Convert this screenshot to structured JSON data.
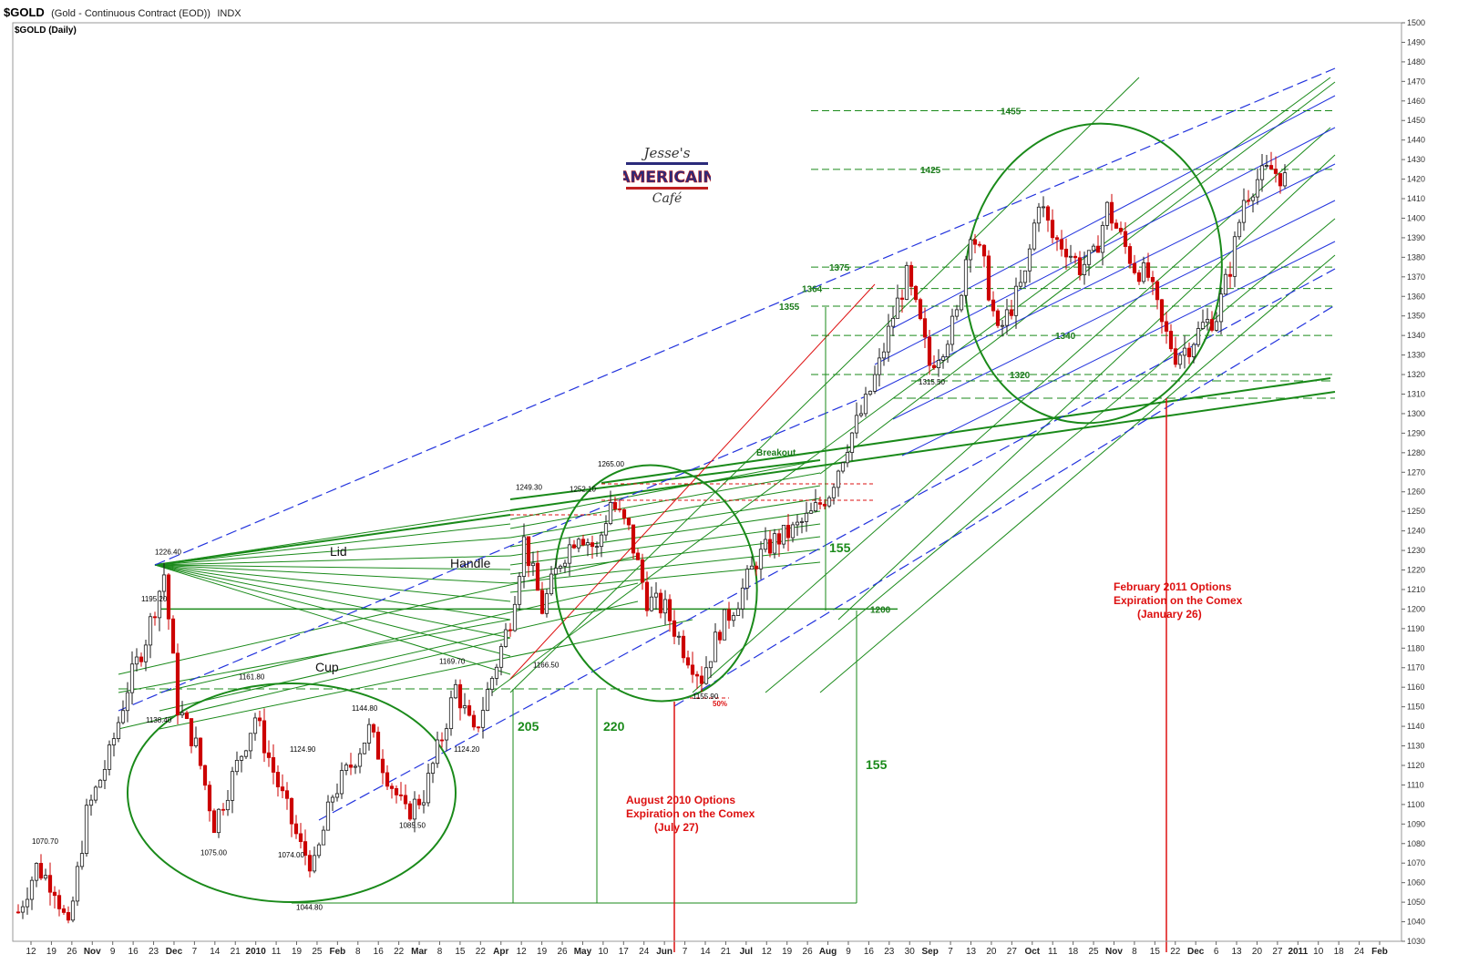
{
  "header": {
    "symbol": "$GOLD",
    "description": "(Gold - Continuous Contract (EOD))",
    "exchange": "INDX",
    "series_label": "$GOLD (Daily)"
  },
  "logo": {
    "line1": "Jesse's",
    "line2": "AMERICAIN",
    "line3": "Café"
  },
  "colors": {
    "up_candle": "#1a1a1a",
    "down_candle": "#cc0000",
    "green_lines": "#1a8a1a",
    "blue_lines": "#2233dd",
    "red_lines": "#dd1111",
    "grid": "#cccccc"
  },
  "chart_data": {
    "type": "candlestick",
    "title": "$GOLD (Daily)",
    "ylim": [
      1030,
      1500
    ],
    "y_ticks": [
      1030,
      1040,
      1050,
      1060,
      1070,
      1080,
      1090,
      1100,
      1110,
      1120,
      1130,
      1140,
      1150,
      1160,
      1170,
      1180,
      1190,
      1200,
      1210,
      1220,
      1230,
      1240,
      1250,
      1260,
      1270,
      1280,
      1290,
      1300,
      1310,
      1320,
      1330,
      1340,
      1350,
      1360,
      1370,
      1380,
      1390,
      1400,
      1410,
      1420,
      1430,
      1440,
      1450,
      1460,
      1470,
      1480,
      1490,
      1500
    ],
    "x_labels": [
      "12",
      "19",
      "26",
      "Nov",
      "9",
      "16",
      "23",
      "Dec",
      "7",
      "14",
      "21",
      "2010",
      "11",
      "19",
      "25",
      "Feb",
      "8",
      "16",
      "22",
      "Mar",
      "8",
      "15",
      "22",
      "Apr",
      "12",
      "19",
      "26",
      "May",
      "10",
      "17",
      "24",
      "Jun",
      "7",
      "14",
      "21",
      "Jul",
      "12",
      "19",
      "26",
      "Aug",
      "9",
      "16",
      "23",
      "30",
      "Sep",
      "7",
      "13",
      "20",
      "27",
      "Oct",
      "11",
      "18",
      "25",
      "Nov",
      "8",
      "15",
      "22",
      "Dec",
      "6",
      "13",
      "20",
      "27",
      "2011",
      "10",
      "18",
      "24",
      "Feb"
    ],
    "x_month_labels": [
      "Nov",
      "Dec",
      "2010",
      "Feb",
      "Mar",
      "Apr",
      "May",
      "Jun",
      "Jul",
      "Aug",
      "Sep",
      "Oct",
      "Nov",
      "Dec",
      "2011",
      "Feb"
    ],
    "series_points": [
      {
        "d": 0,
        "v": 1045
      },
      {
        "d": 20,
        "v": 1068
      },
      {
        "d": 40,
        "v": 1058
      },
      {
        "d": 55,
        "v": 1035
      },
      {
        "d": 75,
        "v": 1095
      },
      {
        "d": 100,
        "v": 1125
      },
      {
        "d": 120,
        "v": 1160
      },
      {
        "d": 140,
        "v": 1185
      },
      {
        "d": 160,
        "v": 1218
      },
      {
        "d": 175,
        "v": 1150
      },
      {
        "d": 195,
        "v": 1130
      },
      {
        "d": 215,
        "v": 1090
      },
      {
        "d": 240,
        "v": 1120
      },
      {
        "d": 260,
        "v": 1145
      },
      {
        "d": 285,
        "v": 1110
      },
      {
        "d": 310,
        "v": 1078
      },
      {
        "d": 325,
        "v": 1068
      },
      {
        "d": 345,
        "v": 1105
      },
      {
        "d": 365,
        "v": 1120
      },
      {
        "d": 385,
        "v": 1138
      },
      {
        "d": 405,
        "v": 1115
      },
      {
        "d": 425,
        "v": 1095
      },
      {
        "d": 445,
        "v": 1105
      },
      {
        "d": 465,
        "v": 1135
      },
      {
        "d": 480,
        "v": 1160
      },
      {
        "d": 500,
        "v": 1135
      },
      {
        "d": 520,
        "v": 1165
      },
      {
        "d": 540,
        "v": 1195
      },
      {
        "d": 555,
        "v": 1235
      },
      {
        "d": 575,
        "v": 1200
      },
      {
        "d": 595,
        "v": 1225
      },
      {
        "d": 615,
        "v": 1240
      },
      {
        "d": 635,
        "v": 1230
      },
      {
        "d": 650,
        "v": 1255
      },
      {
        "d": 670,
        "v": 1240
      },
      {
        "d": 690,
        "v": 1205
      },
      {
        "d": 710,
        "v": 1200
      },
      {
        "d": 730,
        "v": 1180
      },
      {
        "d": 750,
        "v": 1165
      },
      {
        "d": 770,
        "v": 1190
      },
      {
        "d": 790,
        "v": 1205
      },
      {
        "d": 810,
        "v": 1225
      },
      {
        "d": 830,
        "v": 1235
      },
      {
        "d": 850,
        "v": 1240
      },
      {
        "d": 870,
        "v": 1248
      },
      {
        "d": 890,
        "v": 1260
      },
      {
        "d": 910,
        "v": 1285
      },
      {
        "d": 930,
        "v": 1305
      },
      {
        "d": 945,
        "v": 1325
      },
      {
        "d": 960,
        "v": 1350
      },
      {
        "d": 975,
        "v": 1370
      },
      {
        "d": 990,
        "v": 1345
      },
      {
        "d": 1000,
        "v": 1325
      },
      {
        "d": 1015,
        "v": 1335
      },
      {
        "d": 1030,
        "v": 1350
      },
      {
        "d": 1045,
        "v": 1395
      },
      {
        "d": 1060,
        "v": 1375
      },
      {
        "d": 1075,
        "v": 1340
      },
      {
        "d": 1090,
        "v": 1355
      },
      {
        "d": 1105,
        "v": 1370
      },
      {
        "d": 1120,
        "v": 1410
      },
      {
        "d": 1135,
        "v": 1390
      },
      {
        "d": 1150,
        "v": 1385
      },
      {
        "d": 1165,
        "v": 1375
      },
      {
        "d": 1180,
        "v": 1380
      },
      {
        "d": 1195,
        "v": 1405
      },
      {
        "d": 1210,
        "v": 1390
      },
      {
        "d": 1225,
        "v": 1375
      },
      {
        "d": 1240,
        "v": 1370
      },
      {
        "d": 1255,
        "v": 1345
      },
      {
        "d": 1270,
        "v": 1330
      },
      {
        "d": 1285,
        "v": 1335
      },
      {
        "d": 1300,
        "v": 1345
      },
      {
        "d": 1315,
        "v": 1350
      },
      {
        "d": 1330,
        "v": 1375
      },
      {
        "d": 1345,
        "v": 1410
      },
      {
        "d": 1360,
        "v": 1420
      },
      {
        "d": 1375,
        "v": 1425
      },
      {
        "d": 1390,
        "v": 1420
      }
    ],
    "price_labels": [
      {
        "text": "1070.70",
        "d": 15,
        "v": 1080
      },
      {
        "text": "1226.40",
        "d": 150,
        "v": 1228
      },
      {
        "text": "1195.20",
        "d": 135,
        "v": 1204
      },
      {
        "text": "1138.40",
        "d": 140,
        "v": 1142
      },
      {
        "text": "1161.80",
        "d": 242,
        "v": 1164
      },
      {
        "text": "1075.00",
        "d": 200,
        "v": 1074
      },
      {
        "text": "1124.90",
        "d": 298,
        "v": 1127
      },
      {
        "text": "1074.00",
        "d": 285,
        "v": 1073
      },
      {
        "text": "1044.80",
        "d": 305,
        "v": 1046
      },
      {
        "text": "1144.80",
        "d": 366,
        "v": 1148
      },
      {
        "text": "1085.50",
        "d": 418,
        "v": 1088
      },
      {
        "text": "1169.70",
        "d": 462,
        "v": 1172
      },
      {
        "text": "1124.20",
        "d": 478,
        "v": 1127
      },
      {
        "text": "1249.30",
        "d": 546,
        "v": 1261
      },
      {
        "text": "1252.10",
        "d": 605,
        "v": 1260
      },
      {
        "text": "1166.50",
        "d": 565,
        "v": 1170
      },
      {
        "text": "1265.00",
        "d": 636,
        "v": 1273
      },
      {
        "text": "1155.90",
        "d": 740,
        "v": 1154
      },
      {
        "text": "1315.50",
        "d": 988,
        "v": 1315
      }
    ],
    "horizontal_levels": [
      {
        "text": "1455",
        "v": 1455
      },
      {
        "text": "1425",
        "v": 1425
      },
      {
        "text": "1375",
        "v": 1375
      },
      {
        "text": "1364",
        "v": 1364
      },
      {
        "text": "1355",
        "v": 1355
      },
      {
        "text": "1340",
        "v": 1340
      },
      {
        "text": "1320",
        "v": 1320
      },
      {
        "text": "1200",
        "v": 1200
      }
    ],
    "annotations": {
      "lid": "Lid",
      "handle": "Handle",
      "cup": "Cup",
      "breakout": "Breakout",
      "m205": "205",
      "m220": "220",
      "m155a": "155",
      "m155b": "155",
      "pct50": "50%",
      "aug_line1": "August 2010 Options",
      "aug_line2": "Expiration on the Comex",
      "aug_line3": "(July 27)",
      "feb_line1": "February 2011 Options",
      "feb_line2": "Expiration on the Comex",
      "feb_line3": "(January 26)"
    }
  }
}
